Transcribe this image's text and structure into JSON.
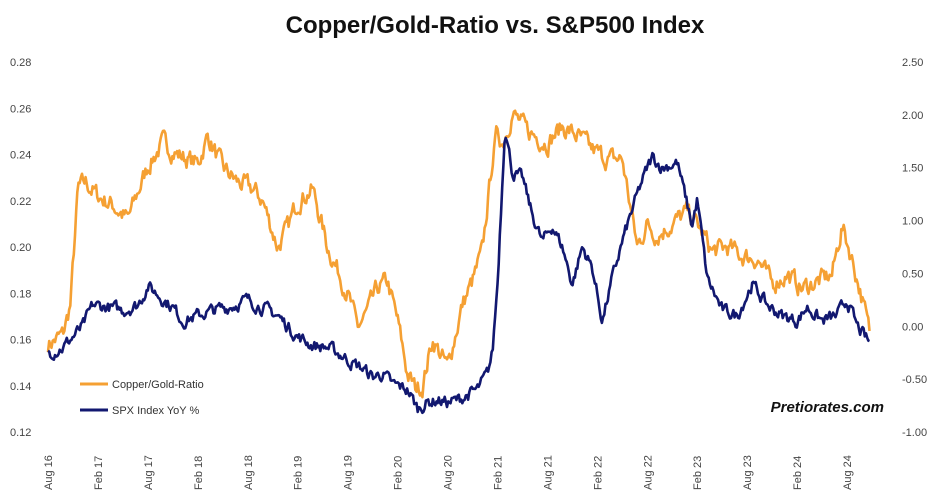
{
  "chart_data": {
    "type": "line",
    "title": "Copper/Gold-Ratio vs. S&P500 Index",
    "xlabel": "",
    "ylabel": "",
    "x": [
      "Aug 16",
      "Feb 17",
      "Aug 17",
      "Feb 18",
      "Aug 18",
      "Feb 19",
      "Aug 19",
      "Feb 20",
      "Aug 20",
      "Feb 21",
      "Aug 21",
      "Feb 22",
      "Aug 22",
      "Feb 23",
      "Aug 23",
      "Feb 24",
      "Aug 24"
    ],
    "y_left_ticks": [
      "0.12",
      "0.14",
      "0.16",
      "0.18",
      "0.20",
      "0.22",
      "0.24",
      "0.26",
      "0.28"
    ],
    "y_right_ticks": [
      "-1.00",
      "-0.50",
      "0.00",
      "0.50",
      "1.00",
      "1.50",
      "2.00",
      "2.50"
    ],
    "ylim_left": [
      0.12,
      0.28
    ],
    "ylim_right": [
      -1.0,
      2.5
    ],
    "x_range": [
      0,
      16.7
    ],
    "legend_position": "bottom-left",
    "grid": false,
    "series": [
      {
        "name": "Copper/Gold-Ratio",
        "axis": "left",
        "color": "#F5A033",
        "x": [
          0,
          0.3,
          0.45,
          0.6,
          0.75,
          1.0,
          1.3,
          1.6,
          2.0,
          2.3,
          2.6,
          3.0,
          3.2,
          3.5,
          3.8,
          4.1,
          4.3,
          4.6,
          4.8,
          5.0,
          5.3,
          5.6,
          5.8,
          6.0,
          6.2,
          6.4,
          6.6,
          6.8,
          7.0,
          7.2,
          7.35,
          7.5,
          7.7,
          8.0,
          8.3,
          8.5,
          8.7,
          8.9,
          9.0,
          9.1,
          9.3,
          9.6,
          10.0,
          10.3,
          10.6,
          10.9,
          11.2,
          11.5,
          11.8,
          12.0,
          12.2,
          12.5,
          12.8,
          13.0,
          13.3,
          13.6,
          13.9,
          14.2,
          14.5,
          14.8,
          15.1,
          15.4,
          15.7,
          15.9,
          16.1,
          16.3,
          16.45
        ],
        "y": [
          0.158,
          0.162,
          0.175,
          0.225,
          0.228,
          0.222,
          0.218,
          0.212,
          0.235,
          0.245,
          0.24,
          0.236,
          0.248,
          0.234,
          0.228,
          0.225,
          0.22,
          0.2,
          0.208,
          0.22,
          0.225,
          0.2,
          0.19,
          0.18,
          0.165,
          0.172,
          0.182,
          0.185,
          0.168,
          0.145,
          0.139,
          0.14,
          0.16,
          0.148,
          0.175,
          0.185,
          0.198,
          0.238,
          0.25,
          0.245,
          0.258,
          0.25,
          0.245,
          0.252,
          0.248,
          0.242,
          0.238,
          0.238,
          0.2,
          0.21,
          0.205,
          0.21,
          0.215,
          0.21,
          0.198,
          0.2,
          0.196,
          0.195,
          0.184,
          0.188,
          0.182,
          0.185,
          0.188,
          0.209,
          0.195,
          0.178,
          0.163
        ]
      },
      {
        "name": "SPX Index YoY %",
        "axis": "right",
        "color": "#121870",
        "x": [
          0,
          0.3,
          0.5,
          0.7,
          0.9,
          1.2,
          1.5,
          1.8,
          2.0,
          2.2,
          2.5,
          2.7,
          3.0,
          3.3,
          3.6,
          4.0,
          4.4,
          4.6,
          4.8,
          5.0,
          5.3,
          5.6,
          5.9,
          6.1,
          6.3,
          6.5,
          6.7,
          6.9,
          7.1,
          7.2,
          7.4,
          7.6,
          7.8,
          8.0,
          8.2,
          8.4,
          8.6,
          8.8,
          8.9,
          9.0,
          9.15,
          9.3,
          9.5,
          9.7,
          9.9,
          10.1,
          10.3,
          10.5,
          10.7,
          10.9,
          11.1,
          11.3,
          11.5,
          11.7,
          11.9,
          12.1,
          12.3,
          12.6,
          12.9,
          13.0,
          13.2,
          13.5,
          13.8,
          14.1,
          14.4,
          14.7,
          15.0,
          15.2,
          15.5,
          15.8,
          16.0,
          16.2,
          16.45
        ],
        "y": [
          -0.25,
          -0.2,
          -0.1,
          0.0,
          0.2,
          0.18,
          0.15,
          0.2,
          0.38,
          0.3,
          0.18,
          0.05,
          0.1,
          0.15,
          0.18,
          0.25,
          0.15,
          0.1,
          0.0,
          -0.1,
          -0.18,
          -0.2,
          -0.28,
          -0.35,
          -0.4,
          -0.48,
          -0.45,
          -0.55,
          -0.58,
          -0.6,
          -0.78,
          -0.72,
          -0.7,
          -0.72,
          -0.7,
          -0.65,
          -0.6,
          -0.45,
          -0.25,
          0.4,
          1.9,
          1.45,
          1.4,
          1.05,
          0.8,
          0.95,
          0.75,
          0.4,
          0.75,
          0.55,
          0.05,
          0.45,
          0.8,
          1.1,
          1.38,
          1.6,
          1.5,
          1.55,
          0.95,
          1.2,
          0.45,
          0.15,
          0.1,
          0.4,
          0.2,
          0.1,
          0.05,
          0.18,
          0.05,
          0.1,
          0.25,
          0.0,
          -0.16
        ]
      }
    ]
  },
  "legend": {
    "items": [
      {
        "label": "Copper/Gold-Ratio",
        "color": "#F5A033"
      },
      {
        "label": "SPX Index YoY %",
        "color": "#121870"
      }
    ]
  },
  "watermark": "Pretiorates.com"
}
